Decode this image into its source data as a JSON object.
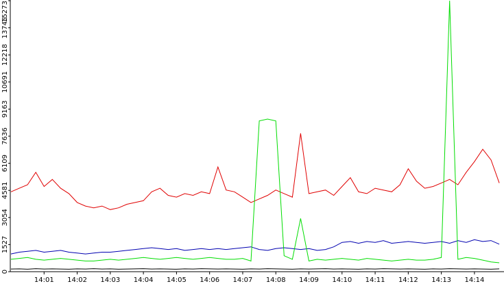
{
  "chart_data": {
    "type": "line",
    "categories": [
      null,
      null,
      null,
      null,
      "14:01",
      null,
      null,
      null,
      "14:02",
      null,
      null,
      null,
      "14:03",
      null,
      null,
      null,
      "14:04",
      null,
      null,
      null,
      "14:05",
      null,
      null,
      null,
      "14:06",
      null,
      null,
      null,
      "14:07",
      null,
      null,
      null,
      "14:08",
      null,
      null,
      null,
      "14:09",
      null,
      null,
      null,
      "14:10",
      null,
      null,
      null,
      "14:11",
      null,
      null,
      null,
      "14:12",
      null,
      null,
      null,
      "14:13",
      null,
      null,
      null,
      "14:14",
      null,
      null,
      null
    ],
    "series": [
      {
        "color": "#e00000",
        "values": [
          4500,
          4700,
          4900,
          5600,
          4800,
          5200,
          4700,
          4400,
          3900,
          3700,
          3600,
          3700,
          3500,
          3600,
          3800,
          3900,
          4000,
          4500,
          4700,
          4300,
          4200,
          4400,
          4300,
          4500,
          4400,
          5900,
          4600,
          4500,
          4200,
          3900,
          4100,
          4300,
          4600,
          4400,
          4200,
          7800,
          4400,
          4500,
          4600,
          4300,
          4800,
          5300,
          4500,
          4400,
          4700,
          4600,
          4500,
          4900,
          5800,
          5100,
          4700,
          4800,
          5000,
          5200,
          4900,
          5600,
          6200,
          6900,
          6300,
          5000
        ]
      },
      {
        "color": "#0000b0",
        "values": [
          1000,
          1100,
          1150,
          1200,
          1100,
          1150,
          1200,
          1100,
          1050,
          1000,
          1050,
          1100,
          1100,
          1150,
          1200,
          1250,
          1300,
          1350,
          1300,
          1250,
          1300,
          1200,
          1250,
          1300,
          1250,
          1300,
          1250,
          1300,
          1350,
          1400,
          1250,
          1200,
          1300,
          1350,
          1300,
          1250,
          1300,
          1200,
          1250,
          1400,
          1650,
          1700,
          1600,
          1700,
          1650,
          1750,
          1600,
          1650,
          1700,
          1650,
          1600,
          1650,
          1700,
          1600,
          1750,
          1650,
          1800,
          1700,
          1750,
          1550
        ]
      },
      {
        "color": "#00dd00",
        "values": [
          700,
          750,
          800,
          700,
          650,
          700,
          750,
          700,
          650,
          600,
          600,
          650,
          700,
          650,
          700,
          750,
          800,
          750,
          700,
          750,
          800,
          750,
          700,
          750,
          800,
          750,
          700,
          700,
          750,
          600,
          8500,
          8600,
          8500,
          900,
          700,
          3000,
          600,
          700,
          650,
          700,
          750,
          700,
          650,
          750,
          700,
          650,
          600,
          650,
          700,
          650,
          650,
          700,
          800,
          15273,
          700,
          800,
          750,
          650,
          550,
          500
        ]
      },
      {
        "color": "#000000",
        "values": [
          150,
          160,
          140,
          170,
          150,
          160,
          150,
          140,
          160,
          150,
          170,
          150,
          160,
          140,
          150,
          160,
          170,
          150,
          160,
          150,
          140,
          160,
          150,
          170,
          160,
          150,
          160,
          150,
          140,
          160,
          150,
          170,
          160,
          150,
          140,
          160,
          150,
          160,
          170,
          150,
          160,
          150,
          140,
          160,
          150,
          170,
          160,
          150,
          160,
          150,
          140,
          160,
          150,
          170,
          160,
          150,
          160,
          150,
          140,
          160
        ]
      }
    ],
    "ylim": [
      0,
      15273
    ],
    "yticks": [
      0,
      1527,
      3054,
      4581,
      6109,
      7636,
      9163,
      10691,
      12218,
      13745,
      15273
    ]
  }
}
